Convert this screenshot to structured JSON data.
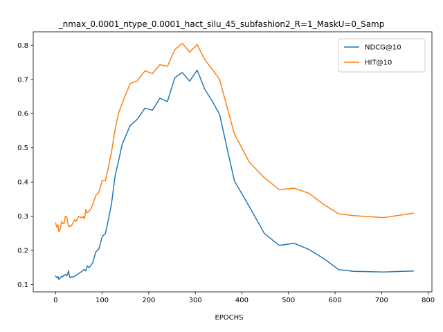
{
  "chart_data": {
    "type": "line",
    "title": "_nmax_0.0001_ntype_0.0001_hact_silu_45_subfashion2_R=1_MaskU=0_Samp",
    "xlabel": "EPOCHS",
    "ylabel": "",
    "xlim": [
      -48,
      808
    ],
    "ylim": [
      0.079,
      0.839
    ],
    "xticks": [
      0,
      100,
      200,
      300,
      400,
      500,
      600,
      700,
      800
    ],
    "yticks": [
      0.1,
      0.2,
      0.3,
      0.4,
      0.5,
      0.6,
      0.7,
      0.8
    ],
    "grid": false,
    "legend": "top-right",
    "series": [
      {
        "name": "NDCG@10",
        "color": "#1f77b4",
        "x": [
          0,
          3,
          5,
          7,
          9,
          11,
          13,
          15,
          18,
          21,
          24,
          26,
          28,
          30,
          32,
          35,
          38,
          41,
          44,
          47,
          50,
          53,
          56,
          59,
          62,
          65,
          68,
          72,
          76,
          80,
          86,
          93,
          100,
          107,
          113,
          120,
          128,
          135,
          143,
          160,
          175,
          192,
          208,
          224,
          240,
          256,
          272,
          288,
          304,
          320,
          336,
          352,
          368,
          384,
          416,
          448,
          480,
          512,
          544,
          576,
          608,
          640,
          704,
          768
        ],
        "y": [
          0.125,
          0.12,
          0.124,
          0.115,
          0.119,
          0.121,
          0.125,
          0.123,
          0.127,
          0.13,
          0.126,
          0.133,
          0.14,
          0.122,
          0.12,
          0.124,
          0.122,
          0.125,
          0.128,
          0.13,
          0.133,
          0.136,
          0.138,
          0.142,
          0.145,
          0.14,
          0.155,
          0.15,
          0.157,
          0.165,
          0.195,
          0.205,
          0.24,
          0.25,
          0.288,
          0.335,
          0.42,
          0.46,
          0.51,
          0.565,
          0.583,
          0.616,
          0.61,
          0.645,
          0.635,
          0.705,
          0.72,
          0.695,
          0.727,
          0.672,
          0.637,
          0.598,
          0.5,
          0.403,
          0.328,
          0.25,
          0.215,
          0.221,
          0.203,
          0.176,
          0.144,
          0.139,
          0.137,
          0.14
        ]
      },
      {
        "name": "HIT@10",
        "color": "#ff7f0e",
        "x": [
          0,
          3,
          5,
          7,
          9,
          11,
          13,
          15,
          18,
          21,
          24,
          26,
          28,
          30,
          32,
          35,
          38,
          41,
          44,
          47,
          50,
          53,
          56,
          59,
          62,
          65,
          68,
          72,
          76,
          80,
          86,
          93,
          100,
          107,
          113,
          120,
          128,
          135,
          143,
          160,
          175,
          192,
          208,
          224,
          240,
          256,
          272,
          288,
          304,
          320,
          336,
          352,
          368,
          384,
          416,
          448,
          480,
          512,
          544,
          576,
          608,
          640,
          704,
          768
        ],
        "y": [
          0.28,
          0.268,
          0.275,
          0.255,
          0.26,
          0.27,
          0.285,
          0.28,
          0.278,
          0.3,
          0.298,
          0.283,
          0.27,
          0.272,
          0.27,
          0.275,
          0.282,
          0.29,
          0.285,
          0.293,
          0.3,
          0.298,
          0.295,
          0.3,
          0.292,
          0.32,
          0.31,
          0.315,
          0.322,
          0.335,
          0.36,
          0.37,
          0.405,
          0.404,
          0.44,
          0.487,
          0.555,
          0.6,
          0.63,
          0.688,
          0.695,
          0.725,
          0.717,
          0.743,
          0.738,
          0.787,
          0.805,
          0.78,
          0.802,
          0.758,
          0.73,
          0.7,
          0.62,
          0.54,
          0.458,
          0.413,
          0.378,
          0.382,
          0.367,
          0.334,
          0.307,
          0.302,
          0.296,
          0.309
        ]
      }
    ]
  }
}
